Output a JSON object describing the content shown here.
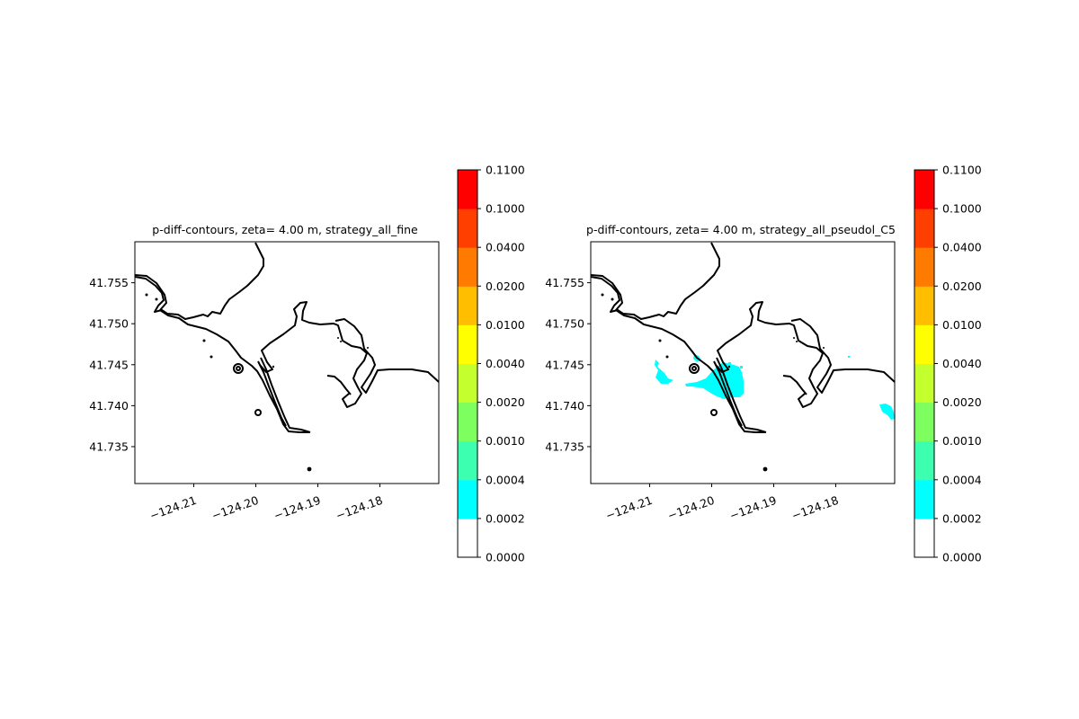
{
  "chart_data": [
    {
      "type": "heatmap",
      "title": "p-diff-contours, zeta= 4.00 m, strategy_all_fine",
      "xlabel": "",
      "ylabel": "",
      "xlim": [
        -124.2195,
        -124.1705
      ],
      "ylim": [
        41.7305,
        41.76
      ],
      "xticks": [
        -124.21,
        -124.2,
        -124.19,
        -124.18
      ],
      "xtick_labels": [
        "−124.21",
        "−124.20",
        "−124.19",
        "−124.18"
      ],
      "yticks": [
        41.735,
        41.74,
        41.745,
        41.75,
        41.755
      ],
      "ytick_labels": [
        "41.735",
        "41.740",
        "41.745",
        "41.750",
        "41.755"
      ],
      "grid": false,
      "filled_regions": []
    },
    {
      "type": "heatmap",
      "title": "p-diff-contours, zeta= 4.00 m, strategy_all_pseudol_C5",
      "xlabel": "",
      "ylabel": "",
      "xlim": [
        -124.2195,
        -124.1705
      ],
      "ylim": [
        41.7305,
        41.76
      ],
      "xticks": [
        -124.21,
        -124.2,
        -124.19,
        -124.18
      ],
      "xtick_labels": [
        "−124.21",
        "−124.20",
        "−124.19",
        "−124.18"
      ],
      "yticks": [
        41.735,
        41.74,
        41.745,
        41.75,
        41.755
      ],
      "ytick_labels": [
        "41.735",
        "41.740",
        "41.745",
        "41.750",
        "41.755"
      ],
      "grid": false,
      "filled_regions": [
        {
          "level": "0.0002-0.0004",
          "lon": -124.2085,
          "lat": 41.7445
        },
        {
          "level": "0.0002-0.0004",
          "lon": -124.201,
          "lat": 41.741
        },
        {
          "level": "0.0002-0.0004",
          "lon": -124.1965,
          "lat": 41.7415
        },
        {
          "level": "0.0002-0.0004",
          "lon": -124.1735,
          "lat": 41.7392
        }
      ]
    }
  ],
  "colorbar": {
    "levels": [
      {
        "label": "0.0000",
        "color": "#ffffff"
      },
      {
        "label": "0.0002",
        "color": "#00ffff"
      },
      {
        "label": "0.0004",
        "color": "#3dffb0"
      },
      {
        "label": "0.0010",
        "color": "#7dff5f"
      },
      {
        "label": "0.0020",
        "color": "#c4ff2e"
      },
      {
        "label": "0.0040",
        "color": "#ffff00"
      },
      {
        "label": "0.0100",
        "color": "#ffbf00"
      },
      {
        "label": "0.0200",
        "color": "#ff7a00"
      },
      {
        "label": "0.0400",
        "color": "#ff3f00"
      },
      {
        "label": "0.1000",
        "color": "#ff0000"
      },
      {
        "label": "0.1100",
        "color": ""
      }
    ]
  },
  "colors": {
    "coastline": "#000000",
    "contour_fill": "#00ffff"
  }
}
